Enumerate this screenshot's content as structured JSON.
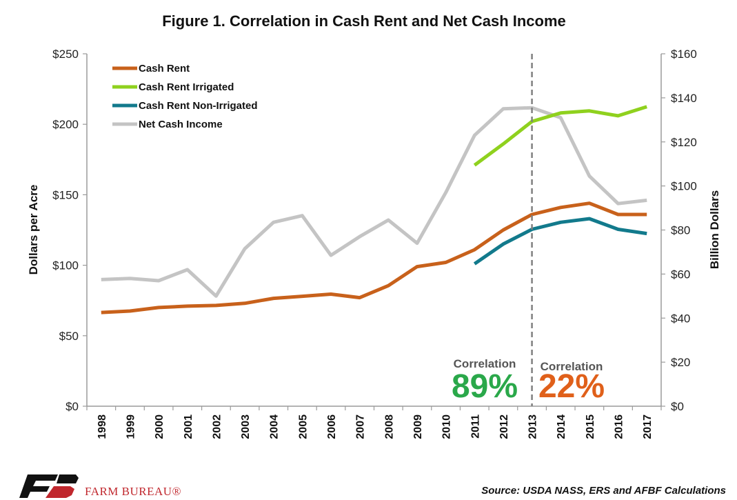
{
  "chart_data": {
    "type": "line",
    "title": "Figure 1. Correlation in Cash Rent and Net Cash Income",
    "ylabel_left": "Dollars per Acre",
    "ylabel_right": "Billion Dollars",
    "ylim_left": [
      0,
      250
    ],
    "ylim_right": [
      0,
      160
    ],
    "yticks_left": [
      "$0",
      "$50",
      "$100",
      "$150",
      "$200",
      "$250"
    ],
    "yticks_right": [
      "$0",
      "$20",
      "$40",
      "$60",
      "$80",
      "$100",
      "$120",
      "$140",
      "$160"
    ],
    "categories": [
      "1998",
      "1999",
      "2000",
      "2001",
      "2002",
      "2003",
      "2004",
      "2005",
      "2006",
      "2007",
      "2008",
      "2009",
      "2010",
      "2011",
      "2012",
      "2013",
      "2014",
      "2015",
      "2016",
      "2017"
    ],
    "series": [
      {
        "name": "Cash Rent",
        "axis": "left",
        "color": "#c8611b",
        "values": [
          66.5,
          67.5,
          70,
          71,
          71.5,
          73,
          76.5,
          78,
          79.5,
          77,
          85.5,
          99,
          102,
          111,
          125,
          136,
          141,
          144,
          136,
          136
        ]
      },
      {
        "name": "Cash Rent Irrigated",
        "axis": "left",
        "color": "#8fd11e",
        "values": [
          null,
          null,
          null,
          null,
          null,
          null,
          null,
          null,
          null,
          null,
          null,
          null,
          null,
          171,
          186,
          202,
          208,
          209.5,
          206,
          212.5
        ]
      },
      {
        "name": "Cash Rent Non-Irrigated",
        "axis": "left",
        "color": "#127a8c",
        "values": [
          null,
          null,
          null,
          null,
          null,
          null,
          null,
          null,
          null,
          null,
          null,
          null,
          null,
          101,
          115,
          125.5,
          130.5,
          133,
          125.5,
          122.5
        ]
      },
      {
        "name": "Net Cash Income",
        "axis": "right",
        "color": "#c4c4c4",
        "values": [
          57.5,
          58,
          57,
          62,
          50,
          71.5,
          83.5,
          86.5,
          68.5,
          77,
          84.5,
          74,
          97,
          123,
          135,
          135.5,
          131,
          104.5,
          92,
          93.5
        ]
      }
    ],
    "vline_at": "2013",
    "annotations": [
      {
        "label": "Correlation",
        "value": "89%",
        "color": "#2aa84a"
      },
      {
        "label": "Correlation",
        "value": "22%",
        "color": "#e0601a"
      }
    ],
    "legend_position": "top-left",
    "grid": false
  },
  "footer": {
    "source": "Source: USDA NASS, ERS and AFBF Calculations",
    "brand": "FARM BUREAU®"
  }
}
